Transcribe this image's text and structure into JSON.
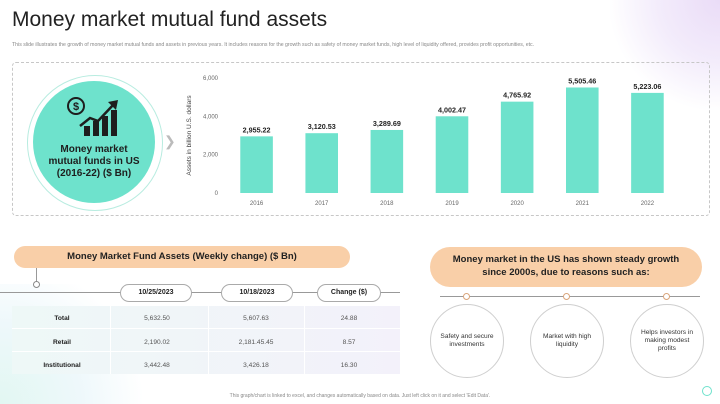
{
  "title": "Money market mutual fund assets",
  "subtitle": "This slide illustrates the growth of money market mutual funds and assets in previous years. It includes reasons for the growth such as safety of money market funds, high level of liquidity offered, provides profit opportunities, etc.",
  "circle_label": "Money market\nmutual funds in US\n(2016-22) ($ Bn)",
  "icons": {
    "circle": "dollar-growth-chart-icon",
    "arrow": "arrow-right-icon"
  },
  "colors": {
    "accent": "#6ee2cc",
    "pill": "#f9cfa8"
  },
  "chart_data": {
    "type": "bar",
    "categories": [
      "2016",
      "2017",
      "2018",
      "2019",
      "2020",
      "2021",
      "2022"
    ],
    "values": [
      2955.22,
      3120.53,
      3289.69,
      4002.47,
      4765.92,
      5505.46,
      5223.06
    ],
    "value_labels": [
      "2,955.22",
      "3,120.53",
      "3,289.69",
      "4,002.47",
      "4,765.92",
      "5,505.46",
      "5,223.06"
    ],
    "ylabel": "Assets in billion U.S. dollars",
    "ylim": [
      0,
      6000
    ],
    "yticks": [
      0,
      2000,
      4000,
      6000
    ],
    "ytick_labels": [
      "0",
      "2,000",
      "4,000",
      "6,000"
    ],
    "bar_color": "#6ee2cc",
    "grid": false
  },
  "table": {
    "title": "Money Market Fund Assets (Weekly change) ($ Bn)",
    "columns": [
      "10/25/2023",
      "10/18/2023",
      "Change ($)"
    ],
    "rows": [
      {
        "label": "Total",
        "values": [
          "5,632.50",
          "5,607.63",
          "24.88"
        ]
      },
      {
        "label": "Retail",
        "values": [
          "2,190.02",
          "2,181.45.45",
          "8.57"
        ]
      },
      {
        "label": "Institutional",
        "values": [
          "3,442.48",
          "3,426.18",
          "16.30"
        ]
      }
    ]
  },
  "reasons": {
    "title": "Money market in the US has shown steady growth\nsince 2000s, due to reasons such as:",
    "items": [
      "Safety and secure investments",
      "Market with high liquidity",
      "Helps investors in making modest profits"
    ]
  },
  "footer": "This graph/chart is linked to excel, and changes automatically based on data. Just left click on it and select 'Edit Data'."
}
